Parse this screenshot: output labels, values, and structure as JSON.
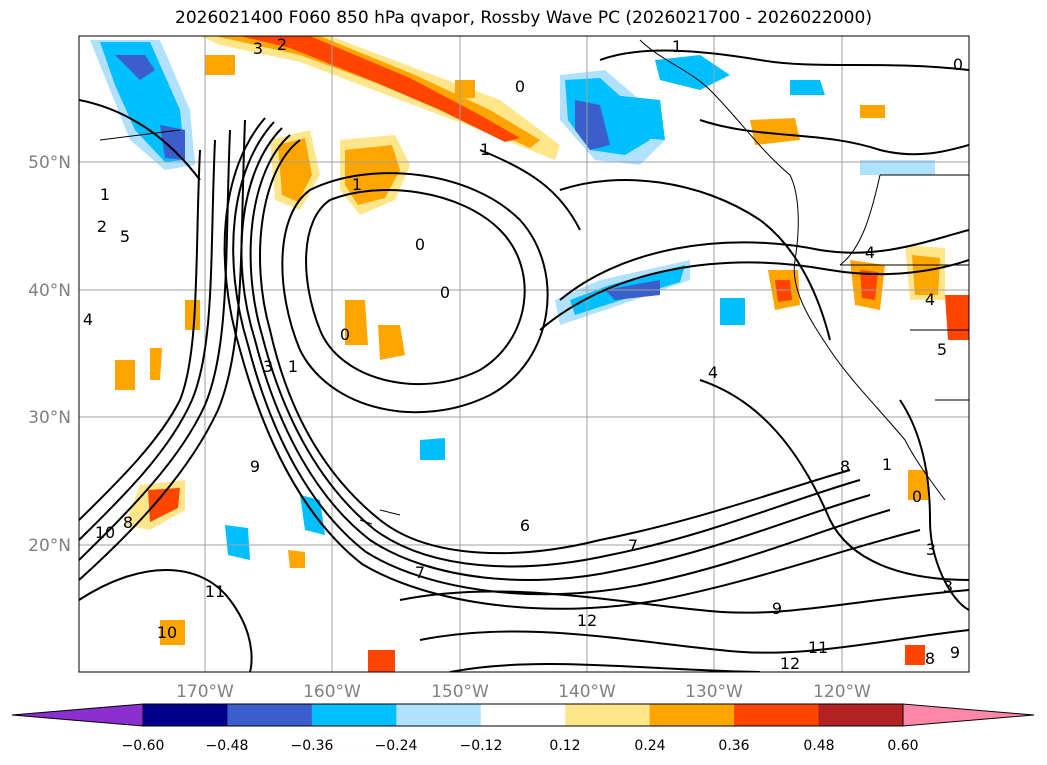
{
  "title": "2026021400 F060 850 hPa qvapor, Rossby Wave PC (2026021700 - 2026022000)",
  "map": {
    "lat_labels": [
      "50°N",
      "40°N",
      "30°N",
      "20°N"
    ],
    "lon_labels": [
      "170°W",
      "160°W",
      "150°W",
      "140°W",
      "130°W",
      "120°W"
    ],
    "label_color": "#808080",
    "contour_labels": [
      "3",
      "2",
      "1",
      "0",
      "0",
      "1",
      "1",
      "0",
      "1",
      "2",
      "5",
      "4",
      "0",
      "0",
      "3",
      "1",
      "4",
      "4",
      "4",
      "5",
      "6",
      "7",
      "7",
      "8",
      "9",
      "10",
      "10",
      "11",
      "12",
      "12",
      "11",
      "9",
      "9",
      "8",
      "3",
      "3",
      "0",
      "8",
      "1"
    ]
  },
  "colorbar": {
    "ticks": [
      "−0.60",
      "−0.48",
      "−0.36",
      "−0.24",
      "−0.12",
      "0.12",
      "0.24",
      "0.36",
      "0.48",
      "0.60"
    ],
    "colors": [
      "#8b2fd0",
      "#00008b",
      "#3a5fcd",
      "#00bfff",
      "#b0e2ff",
      "#ffffff",
      "#ffe68a",
      "#ffa500",
      "#ff4500",
      "#b22222",
      "#ff88aa"
    ]
  },
  "colors": {
    "contour": "#000000",
    "grid": "#a0a0a0",
    "coast": "#000000"
  }
}
